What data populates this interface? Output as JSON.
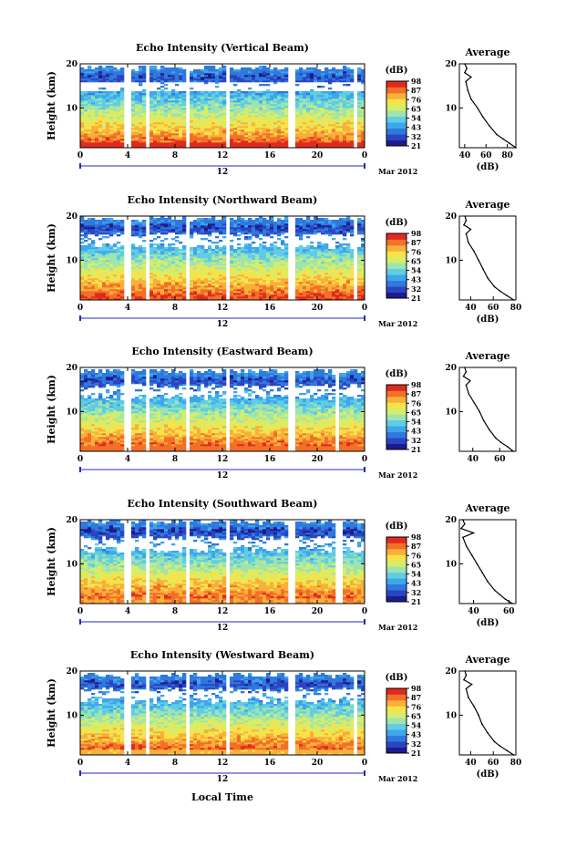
{
  "figure": {
    "x_axis_label": "Local Time",
    "date_label": "Mar 2012",
    "day_label": "12",
    "y_axis_label": "Height (km)",
    "unit_label": "(dB)",
    "average_title": "Average",
    "colors": {
      "colormap": [
        "#1c1c8c",
        "#2b45c2",
        "#2f79dd",
        "#3ea6ec",
        "#5fcde4",
        "#9ee4b0",
        "#d4ee6a",
        "#f7e24a",
        "#f8b03a",
        "#f27027",
        "#e02a1e"
      ],
      "gap": "#ffffff",
      "axis": "#000000",
      "time_marker": "#2727c2"
    }
  },
  "chart_data": [
    {
      "type": "heatmap",
      "title": "Echo Intensity (Vertical Beam)",
      "x_ticks": [
        "0",
        "4",
        "8",
        "12",
        "16",
        "20",
        "0"
      ],
      "x_range": [
        0,
        24
      ],
      "y_ticks": [
        "20",
        "10"
      ],
      "y_range": [
        1,
        20
      ],
      "colorbar_ticks": [
        "98",
        "87",
        "76",
        "65",
        "54",
        "43",
        "32",
        "21"
      ],
      "colorbar_range": [
        21,
        98
      ],
      "data_gaps_hours": [
        [
          3.8,
          4.2
        ],
        [
          5.5,
          5.9
        ],
        [
          8.8,
          9.2
        ],
        [
          12.2,
          12.6
        ],
        [
          17.6,
          18.0
        ],
        [
          23.1,
          23.5
        ]
      ],
      "average_profile": {
        "xlabel": "(dB)",
        "x_ticks": [
          "40",
          "60",
          "80"
        ],
        "x_range": [
          35,
          88
        ],
        "y_ticks": [
          "20",
          "10"
        ],
        "y_range": [
          1,
          20
        ],
        "height_km": [
          1,
          2,
          3,
          4,
          6,
          8,
          10,
          12,
          14,
          16,
          17,
          18,
          19,
          20
        ],
        "intensity_db": [
          88,
          82,
          76,
          70,
          63,
          57,
          52,
          46,
          43,
          41,
          46,
          40,
          42,
          40
        ]
      }
    },
    {
      "type": "heatmap",
      "title": "Echo Intensity (Northward Beam)",
      "x_ticks": [
        "0",
        "4",
        "8",
        "12",
        "16",
        "20",
        "0"
      ],
      "x_range": [
        0,
        24
      ],
      "y_ticks": [
        "20",
        "10"
      ],
      "y_range": [
        1,
        20
      ],
      "colorbar_ticks": [
        "98",
        "87",
        "76",
        "65",
        "54",
        "43",
        "32",
        "21"
      ],
      "colorbar_range": [
        21,
        98
      ],
      "data_gaps_hours": [
        [
          3.8,
          4.2
        ],
        [
          5.5,
          5.9
        ],
        [
          8.8,
          9.2
        ],
        [
          12.2,
          12.6
        ],
        [
          17.6,
          18.0
        ],
        [
          23.1,
          23.5
        ]
      ],
      "average_profile": {
        "xlabel": "(dB)",
        "x_ticks": [
          "40",
          "60",
          "80"
        ],
        "x_range": [
          30,
          80
        ],
        "y_ticks": [
          "20",
          "10"
        ],
        "y_range": [
          1,
          20
        ],
        "height_km": [
          1,
          2,
          3,
          4,
          6,
          8,
          10,
          12,
          14,
          16,
          17,
          18,
          19,
          20
        ],
        "intensity_db": [
          78,
          72,
          66,
          61,
          55,
          51,
          47,
          43,
          38,
          36,
          40,
          34,
          36,
          35
        ]
      }
    },
    {
      "type": "heatmap",
      "title": "Echo Intensity (Eastward Beam)",
      "x_ticks": [
        "0",
        "4",
        "8",
        "12",
        "16",
        "20",
        "0"
      ],
      "x_range": [
        0,
        24
      ],
      "y_ticks": [
        "20",
        "10"
      ],
      "y_range": [
        1,
        20
      ],
      "colorbar_ticks": [
        "98",
        "87",
        "76",
        "65",
        "54",
        "43",
        "32",
        "21"
      ],
      "colorbar_range": [
        21,
        98
      ],
      "data_gaps_hours": [
        [
          3.8,
          4.2
        ],
        [
          5.5,
          5.9
        ],
        [
          8.8,
          9.2
        ],
        [
          12.2,
          12.6
        ],
        [
          17.6,
          18.0
        ],
        [
          21.4,
          21.8
        ]
      ],
      "average_profile": {
        "xlabel": "",
        "x_ticks": [
          "40",
          "60"
        ],
        "x_range": [
          30,
          72
        ],
        "y_ticks": [
          "20",
          "10"
        ],
        "y_range": [
          1,
          20
        ],
        "height_km": [
          1,
          2,
          3,
          4,
          6,
          8,
          10,
          12,
          14,
          16,
          17,
          18,
          19,
          20
        ],
        "intensity_db": [
          70,
          66,
          61,
          57,
          52,
          48,
          45,
          41,
          37,
          35,
          38,
          33,
          35,
          34
        ]
      }
    },
    {
      "type": "heatmap",
      "title": "Echo Intensity (Southward Beam)",
      "x_ticks": [
        "0",
        "4",
        "8",
        "12",
        "16",
        "20",
        "0"
      ],
      "x_range": [
        0,
        24
      ],
      "y_ticks": [
        "20",
        "10"
      ],
      "y_range": [
        1,
        20
      ],
      "colorbar_ticks": [
        "98",
        "87",
        "76",
        "65",
        "54",
        "43",
        "32",
        "21"
      ],
      "colorbar_range": [
        21,
        98
      ],
      "data_gaps_hours": [
        [
          3.8,
          4.2
        ],
        [
          5.5,
          5.9
        ],
        [
          8.8,
          9.2
        ],
        [
          12.2,
          12.6
        ],
        [
          17.6,
          18.0
        ],
        [
          21.6,
          22.0
        ]
      ],
      "average_profile": {
        "xlabel": "(dB)",
        "x_ticks": [
          "40",
          "60"
        ],
        "x_range": [
          32,
          64
        ],
        "y_ticks": [
          "20",
          "10"
        ],
        "y_range": [
          1,
          20
        ],
        "height_km": [
          1,
          2,
          3,
          4,
          6,
          8,
          10,
          12,
          14,
          16,
          17,
          18,
          19,
          20
        ],
        "intensity_db": [
          62,
          58,
          55,
          52,
          48,
          45,
          42,
          39,
          36,
          34,
          40,
          33,
          35,
          34
        ]
      }
    },
    {
      "type": "heatmap",
      "title": "Echo Intensity (Westward Beam)",
      "x_ticks": [
        "0",
        "4",
        "8",
        "12",
        "16",
        "20",
        "0"
      ],
      "x_range": [
        0,
        24
      ],
      "y_ticks": [
        "20",
        "10"
      ],
      "y_range": [
        1,
        20
      ],
      "colorbar_ticks": [
        "98",
        "87",
        "76",
        "65",
        "54",
        "43",
        "32",
        "21"
      ],
      "colorbar_range": [
        21,
        98
      ],
      "data_gaps_hours": [
        [
          3.8,
          4.2
        ],
        [
          5.5,
          5.9
        ],
        [
          8.8,
          9.2
        ],
        [
          12.2,
          12.6
        ],
        [
          17.6,
          18.0
        ],
        [
          23.1,
          23.5
        ]
      ],
      "average_profile": {
        "xlabel": "(dB)",
        "x_ticks": [
          "40",
          "60",
          "80"
        ],
        "x_range": [
          30,
          80
        ],
        "y_ticks": [
          "20",
          "10"
        ],
        "y_range": [
          1,
          20
        ],
        "height_km": [
          1,
          2,
          3,
          4,
          6,
          8,
          10,
          12,
          14,
          16,
          17,
          18,
          19,
          20
        ],
        "intensity_db": [
          78,
          72,
          66,
          61,
          55,
          50,
          47,
          43,
          38,
          36,
          41,
          34,
          36,
          35
        ]
      }
    }
  ]
}
